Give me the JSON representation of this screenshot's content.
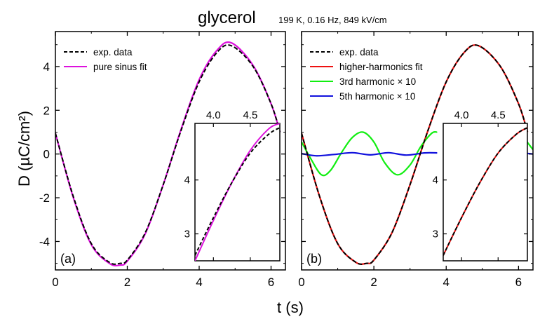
{
  "title": "glycerol",
  "subtitle": "199 K, 0.16 Hz, 849 kV/cm",
  "xlabel": "t (s)",
  "ylabel": "D (µC/cm²)",
  "colors": {
    "data": "#000000",
    "sinus": "#dd11dd",
    "higher": "#ee1111",
    "third": "#11ee11",
    "fifth": "#1111dd"
  },
  "chart_data": [
    {
      "type": "line",
      "panel_label": "(a)",
      "xlim": [
        0,
        6.4
      ],
      "ylim": [
        -5.3,
        5.6
      ],
      "x_ticks": [
        0,
        2,
        4,
        6
      ],
      "y_ticks": [
        -4,
        -2,
        0,
        2,
        4
      ],
      "legend": [
        "exp. data",
        "pure sinus fit"
      ],
      "legend_position": "top-left",
      "series": [
        {
          "name": "exp. data",
          "style": "dashed",
          "color": "#000000",
          "x": [
            0.0,
            0.5,
            1.0,
            1.5,
            1.8,
            2.0,
            2.5,
            3.0,
            3.5,
            4.0,
            4.5,
            4.9,
            5.5,
            6.0,
            6.25
          ],
          "y": [
            0.95,
            -1.95,
            -4.1,
            -4.95,
            -5.0,
            -4.85,
            -3.6,
            -1.4,
            1.1,
            3.3,
            4.65,
            4.95,
            4.0,
            2.3,
            1.0
          ]
        },
        {
          "name": "pure sinus fit",
          "style": "solid",
          "color": "#dd11dd",
          "x": [
            0.0,
            0.5,
            1.0,
            1.5,
            1.8,
            2.0,
            2.5,
            3.0,
            3.5,
            4.0,
            4.5,
            4.9,
            5.5,
            6.0,
            6.25
          ],
          "y": [
            0.95,
            -2.0,
            -4.15,
            -5.0,
            -5.08,
            -4.9,
            -3.65,
            -1.4,
            1.15,
            3.4,
            4.75,
            5.08,
            4.05,
            2.3,
            1.0
          ]
        }
      ],
      "inset": {
        "xlim": [
          3.75,
          4.9
        ],
        "ylim": [
          2.5,
          5.05
        ],
        "x_ticks": [
          4.0,
          4.5
        ],
        "y_ticks": [
          3,
          4
        ],
        "series": [
          {
            "name": "exp. data",
            "x": [
              3.75,
              4.0,
              4.25,
              4.5,
              4.75,
              4.9
            ],
            "y": [
              2.6,
              3.3,
              3.95,
              4.5,
              4.85,
              4.97
            ]
          },
          {
            "name": "pure sinus fit",
            "x": [
              3.75,
              4.0,
              4.25,
              4.5,
              4.75,
              4.9
            ],
            "y": [
              2.5,
              3.25,
              3.95,
              4.55,
              4.95,
              5.05
            ]
          }
        ]
      }
    },
    {
      "type": "line",
      "panel_label": "(b)",
      "xlim": [
        0,
        6.4
      ],
      "ylim": [
        -5.3,
        5.6
      ],
      "x_ticks": [
        0,
        2,
        4,
        6
      ],
      "y_ticks": [
        -4,
        -2,
        0,
        2,
        4
      ],
      "legend": [
        "exp. data",
        "higher-harmonics fit",
        "3rd harmonic × 10",
        "5th harmonic × 10"
      ],
      "legend_position": "top-left",
      "series": [
        {
          "name": "exp. data",
          "style": "dashed",
          "color": "#000000",
          "x": [
            0.0,
            0.5,
            1.0,
            1.5,
            1.8,
            2.0,
            2.5,
            3.0,
            3.5,
            4.0,
            4.5,
            4.9,
            5.5,
            6.0,
            6.25
          ],
          "y": [
            0.95,
            -1.95,
            -4.1,
            -4.95,
            -5.0,
            -4.85,
            -3.6,
            -1.4,
            1.1,
            3.3,
            4.65,
            4.95,
            4.0,
            2.3,
            1.0
          ]
        },
        {
          "name": "higher-harmonics fit",
          "style": "solid",
          "color": "#ee1111",
          "x": [
            0.0,
            0.5,
            1.0,
            1.5,
            1.8,
            2.0,
            2.5,
            3.0,
            3.5,
            4.0,
            4.5,
            4.9,
            5.5,
            6.0,
            6.25
          ],
          "y": [
            0.95,
            -1.95,
            -4.1,
            -4.95,
            -5.0,
            -4.85,
            -3.6,
            -1.4,
            1.1,
            3.3,
            4.65,
            4.95,
            4.0,
            2.3,
            1.0
          ]
        },
        {
          "name": "3rd harmonic × 10",
          "style": "solid",
          "color": "#11ee11",
          "x": [
            0.0,
            0.25,
            0.55,
            0.8,
            1.1,
            1.4,
            1.7,
            2.0,
            2.3,
            2.65,
            3.0,
            3.3,
            3.6,
            3.75
          ],
          "y": [
            0.55,
            -0.2,
            -0.95,
            -0.75,
            0.05,
            0.75,
            1.0,
            0.55,
            -0.4,
            -0.95,
            -0.5,
            0.35,
            0.95,
            1.0
          ]
        },
        {
          "name": "5th harmonic × 10",
          "style": "solid",
          "color": "#1111dd",
          "x": [
            0.0,
            0.4,
            0.9,
            1.4,
            1.9,
            2.4,
            2.9,
            3.4,
            3.75
          ],
          "y": [
            0.02,
            -0.08,
            -0.02,
            0.06,
            -0.04,
            0.06,
            -0.05,
            0.05,
            0.05
          ]
        }
      ],
      "inset": {
        "xlim": [
          3.75,
          4.9
        ],
        "ylim": [
          2.5,
          5.05
        ],
        "x_ticks": [
          4.0,
          4.5
        ],
        "y_ticks": [
          3,
          4
        ],
        "series": [
          {
            "name": "exp. data",
            "x": [
              3.75,
              4.0,
              4.25,
              4.5,
              4.75,
              4.9
            ],
            "y": [
              2.6,
              3.3,
              3.95,
              4.5,
              4.85,
              4.97
            ]
          },
          {
            "name": "higher-harmonics fit",
            "x": [
              3.75,
              4.0,
              4.25,
              4.5,
              4.75,
              4.9
            ],
            "y": [
              2.6,
              3.3,
              3.95,
              4.5,
              4.85,
              4.97
            ]
          }
        ],
        "outside_right": [
          {
            "name": "3rd harmonic × 10",
            "x": [
              6.1,
              6.4
            ],
            "y": [
              0.85,
              0.2
            ]
          },
          {
            "name": "5th harmonic × 10",
            "x": [
              6.1,
              6.4
            ],
            "y": [
              0.05,
              0.0
            ]
          }
        ]
      }
    }
  ]
}
